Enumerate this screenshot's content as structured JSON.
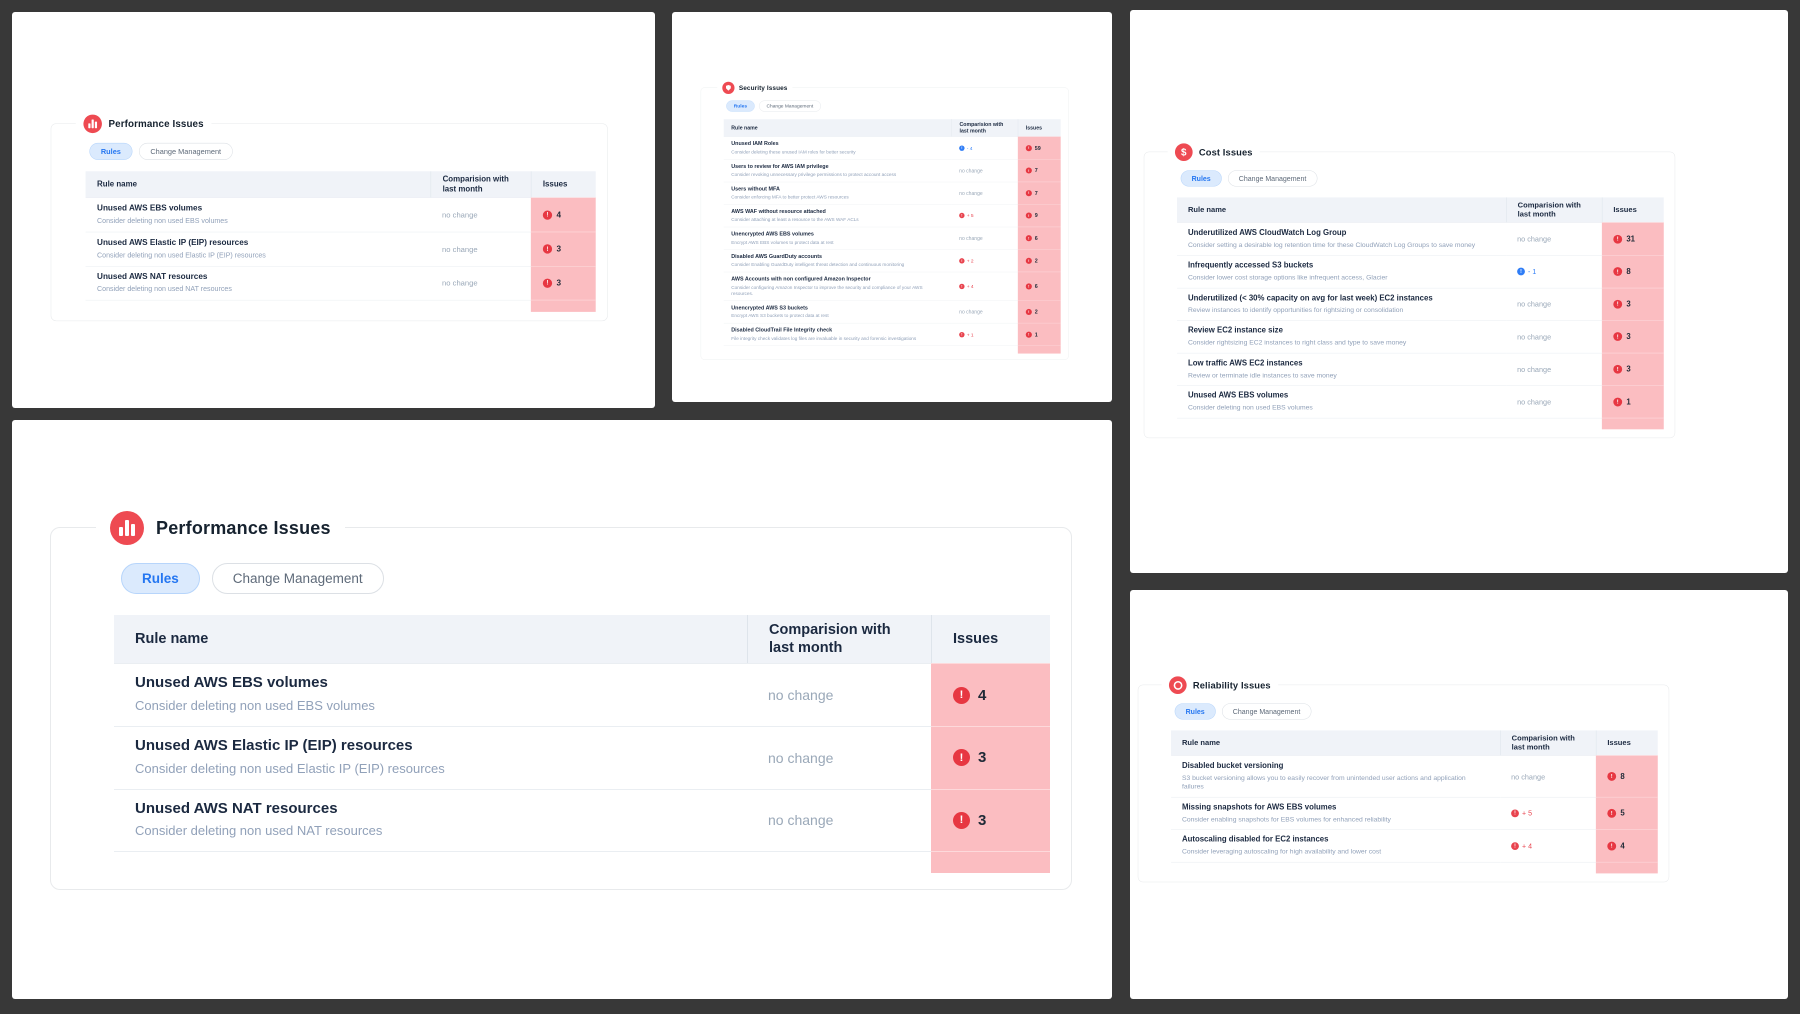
{
  "colors": {
    "page_background": "#383838",
    "panel_background": "#ffffff",
    "accent_red": "#ee4a52",
    "accent_blue": "#2f7df6",
    "issues_column_bg": "#fbbdc1",
    "table_header_bg": "#f0f3f8",
    "active_tab_bg": "#dbeafd",
    "active_tab_text": "#2476f1"
  },
  "panels": [
    {
      "id": "performance-issues-small",
      "title": "Performance Issues",
      "icon": "bar-chart-icon",
      "tabs": [
        "Rules",
        "Change Management"
      ],
      "active_tab": "Rules",
      "columns": {
        "rule": "Rule name",
        "comparison": "Comparision with last month",
        "issues": "Issues"
      },
      "rows": [
        {
          "title": "Unused AWS EBS volumes",
          "description": "Consider deleting non used EBS volumes",
          "comparison": {
            "trend": "none",
            "label": "no change"
          },
          "issues": "4"
        },
        {
          "title": "Unused AWS Elastic IP (EIP) resources",
          "description": "Consider deleting non used Elastic IP (EIP) resources",
          "comparison": {
            "trend": "none",
            "label": "no change"
          },
          "issues": "3"
        },
        {
          "title": "Unused AWS NAT resources",
          "description": "Consider deleting non used NAT resources",
          "comparison": {
            "trend": "none",
            "label": "no change"
          },
          "issues": "3"
        }
      ]
    },
    {
      "id": "security-issues",
      "title": "Security Issues",
      "icon": "shield-icon",
      "tabs": [
        "Rules",
        "Change Management"
      ],
      "active_tab": "Rules",
      "columns": {
        "rule": "Rule name",
        "comparison": "Comparision with last month",
        "issues": "Issues"
      },
      "rows": [
        {
          "title": "Unused IAM Roles",
          "description": "Consider deleting these unused IAM roles for better security",
          "comparison": {
            "trend": "down",
            "label": "- 4"
          },
          "issues": "59"
        },
        {
          "title": "Users to review for AWS IAM privilege",
          "description": "Consider revoking unnecessary privilege permissions to protect account access",
          "comparison": {
            "trend": "none",
            "label": "no change"
          },
          "issues": "7"
        },
        {
          "title": "Users without MFA",
          "description": "Consider enforcing MFA to better protect AWS resources",
          "comparison": {
            "trend": "none",
            "label": "no change"
          },
          "issues": "7"
        },
        {
          "title": "AWS WAF without resource attached",
          "description": "Consider attaching at least a resource to the AWS WAF ACLs",
          "comparison": {
            "trend": "up",
            "label": "+ 5"
          },
          "issues": "9"
        },
        {
          "title": "Unencrypted AWS EBS volumes",
          "description": "Encrypt AWS EBS volumes to protect data at rest",
          "comparison": {
            "trend": "none",
            "label": "no change"
          },
          "issues": "6"
        },
        {
          "title": "Disabled AWS GuardDuty accounts",
          "description": "Consider Enabling GuardDuty intelligent threat detection and continuous monitoring",
          "comparison": {
            "trend": "up",
            "label": "+ 2"
          },
          "issues": "2"
        },
        {
          "title": "AWS Accounts with non configured Amazon Inspector",
          "description": "Consider configuring Amazon Inspector to improve the security and compliance of your AWS resources.",
          "comparison": {
            "trend": "up",
            "label": "+ 4"
          },
          "issues": "6"
        },
        {
          "title": "Unencrypted AWS S3 buckets",
          "description": "Encrypt AWS S3 buckets to protect data at rest",
          "comparison": {
            "trend": "none",
            "label": "no change"
          },
          "issues": "2"
        },
        {
          "title": "Disabled CloudTrail File Integrity check",
          "description": "File integrity check validates log files are invaluable in security and forensic investigations",
          "comparison": {
            "trend": "up",
            "label": "+ 1"
          },
          "issues": "1"
        }
      ]
    },
    {
      "id": "cost-issues",
      "title": "Cost Issues",
      "icon": "dollar-icon",
      "tabs": [
        "Rules",
        "Change Management"
      ],
      "active_tab": "Rules",
      "columns": {
        "rule": "Rule name",
        "comparison": "Comparision with last month",
        "issues": "Issues"
      },
      "rows": [
        {
          "title": "Underutilized AWS CloudWatch Log Group",
          "description": "Consider setting a desirable log retention time for these CloudWatch Log Groups to save money",
          "comparison": {
            "trend": "none",
            "label": "no change"
          },
          "issues": "31"
        },
        {
          "title": "Infrequently accessed S3 buckets",
          "description": "Consider lower cost storage options like infrequent access, Glacier",
          "comparison": {
            "trend": "down",
            "label": "- 1"
          },
          "issues": "8"
        },
        {
          "title": "Underutilized (< 30% capacity on avg for last week) EC2 instances",
          "description": "Review instances to identify opportunities for rightsizing or consolidation",
          "comparison": {
            "trend": "none",
            "label": "no change"
          },
          "issues": "3"
        },
        {
          "title": "Review EC2 instance size",
          "description": "Consider rightsizing EC2 instances to right class and type to save money",
          "comparison": {
            "trend": "none",
            "label": "no change"
          },
          "issues": "3"
        },
        {
          "title": "Low traffic AWS EC2 instances",
          "description": "Review or terminate idle instances to save money",
          "comparison": {
            "trend": "none",
            "label": "no change"
          },
          "issues": "3"
        },
        {
          "title": "Unused AWS EBS volumes",
          "description": "Consider deleting non used EBS volumes",
          "comparison": {
            "trend": "none",
            "label": "no change"
          },
          "issues": "1"
        }
      ]
    },
    {
      "id": "performance-issues-large",
      "title": "Performance Issues",
      "icon": "bar-chart-icon",
      "tabs": [
        "Rules",
        "Change Management"
      ],
      "active_tab": "Rules",
      "columns": {
        "rule": "Rule name",
        "comparison": "Comparision with last month",
        "issues": "Issues"
      },
      "rows": [
        {
          "title": "Unused AWS EBS volumes",
          "description": "Consider deleting non used EBS volumes",
          "comparison": {
            "trend": "none",
            "label": "no change"
          },
          "issues": "4"
        },
        {
          "title": "Unused AWS Elastic IP (EIP) resources",
          "description": "Consider deleting non used Elastic IP (EIP) resources",
          "comparison": {
            "trend": "none",
            "label": "no change"
          },
          "issues": "3"
        },
        {
          "title": "Unused AWS NAT resources",
          "description": "Consider deleting non used NAT resources",
          "comparison": {
            "trend": "none",
            "label": "no change"
          },
          "issues": "3"
        }
      ]
    },
    {
      "id": "reliability-issues",
      "title": "Reliability Issues",
      "icon": "reliability-ring-icon",
      "tabs": [
        "Rules",
        "Change Management"
      ],
      "active_tab": "Rules",
      "columns": {
        "rule": "Rule name",
        "comparison": "Comparision with last month",
        "issues": "Issues"
      },
      "rows": [
        {
          "title": "Disabled bucket versioning",
          "description": "S3 bucket versioning allows you to easily recover from unintended user actions and application failures",
          "comparison": {
            "trend": "none",
            "label": "no change"
          },
          "issues": "8"
        },
        {
          "title": "Missing snapshots for AWS EBS volumes",
          "description": "Consider enabling snapshots for EBS volumes for enhanced reliability",
          "comparison": {
            "trend": "up",
            "label": "+ 5"
          },
          "issues": "5"
        },
        {
          "title": "Autoscaling disabled for EC2 instances",
          "description": "Consider leveraging autoscaling for high availability and lower cost",
          "comparison": {
            "trend": "up",
            "label": "+ 4"
          },
          "issues": "4"
        }
      ]
    }
  ]
}
